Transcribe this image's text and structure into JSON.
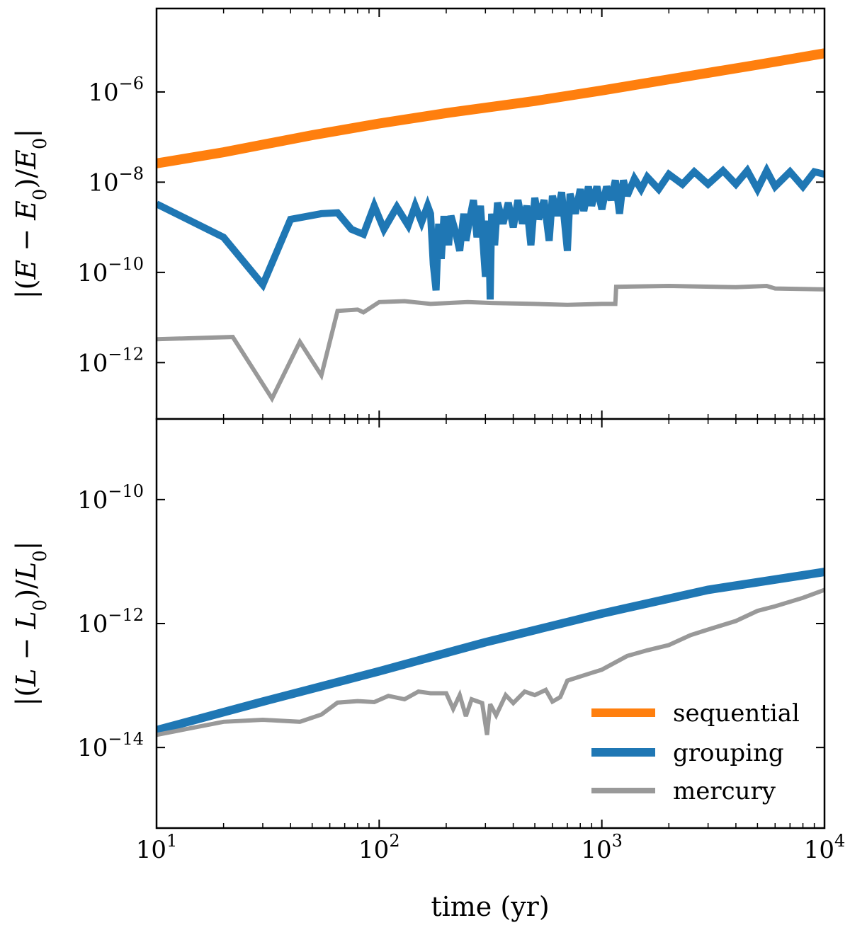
{
  "chart_data": [
    {
      "type": "line",
      "panel": "top",
      "title": "",
      "ylabel": "|(E − E0)/E0|",
      "ylabel_parts": [
        "|(",
        "E",
        " − ",
        "E",
        "0",
        ")/",
        "E",
        "0",
        "|"
      ],
      "xscale": "log",
      "yscale": "log",
      "xlim": [
        10,
        10000
      ],
      "ylim_log10": [
        -13.25,
        -4.15
      ],
      "yticks": [
        {
          "exp": -6,
          "label": "10",
          "sup": "−6"
        },
        {
          "exp": -8,
          "label": "10",
          "sup": "−8"
        },
        {
          "exp": -10,
          "label": "10",
          "sup": "−10"
        },
        {
          "exp": -12,
          "label": "10",
          "sup": "−12"
        }
      ],
      "series": [
        {
          "name": "sequential",
          "color": "#ff7f0e",
          "width": 14,
          "points": [
            [
              10,
              2.6e-08
            ],
            [
              20,
              4.6e-08
            ],
            [
              50,
              1.1e-07
            ],
            [
              100,
              2e-07
            ],
            [
              200,
              3.4e-07
            ],
            [
              500,
              6.3e-07
            ],
            [
              1000,
              1.08e-06
            ],
            [
              2000,
              1.9e-06
            ],
            [
              5000,
              4e-06
            ],
            [
              10000,
              7.2e-06
            ]
          ]
        },
        {
          "name": "grouping",
          "color": "#1f77b4",
          "width": 10,
          "points": [
            [
              10,
              3.3e-09
            ],
            [
              20,
              6e-10
            ],
            [
              30,
              5.3e-11
            ],
            [
              40,
              1.5e-09
            ],
            [
              55,
              2e-09
            ],
            [
              65,
              2.1e-09
            ],
            [
              75,
              9e-10
            ],
            [
              85,
              7e-10
            ],
            [
              95,
              3e-09
            ],
            [
              105,
              9e-10
            ],
            [
              120,
              2.8e-09
            ],
            [
              135,
              1.1e-09
            ],
            [
              145,
              3e-09
            ],
            [
              155,
              1.3e-09
            ],
            [
              165,
              3e-09
            ],
            [
              170,
              2e-09
            ],
            [
              175,
              1.5e-10
            ],
            [
              180,
              4e-11
            ],
            [
              185,
              1.2e-09
            ],
            [
              190,
              2e-10
            ],
            [
              195,
              1.5e-09
            ],
            [
              200,
              1.5e-09
            ],
            [
              205,
              4e-10
            ],
            [
              210,
              1.8e-09
            ],
            [
              220,
              8e-10
            ],
            [
              230,
              3e-10
            ],
            [
              240,
              2e-09
            ],
            [
              245,
              5e-10
            ],
            [
              255,
              1.5e-09
            ],
            [
              265,
              4e-09
            ],
            [
              275,
              6e-10
            ],
            [
              285,
              3e-09
            ],
            [
              300,
              8e-11
            ],
            [
              310,
              1.4e-09
            ],
            [
              315,
              2.5e-11
            ],
            [
              320,
              2e-09
            ],
            [
              330,
              4e-10
            ],
            [
              340,
              3.5e-09
            ],
            [
              360,
              1.2e-09
            ],
            [
              380,
              3.5e-09
            ],
            [
              400,
              1e-09
            ],
            [
              420,
              4e-09
            ],
            [
              440,
              1.2e-09
            ],
            [
              460,
              3e-09
            ],
            [
              480,
              4e-10
            ],
            [
              500,
              4.5e-09
            ],
            [
              520,
              1.5e-09
            ],
            [
              550,
              4e-09
            ],
            [
              580,
              5e-10
            ],
            [
              600,
              5e-09
            ],
            [
              630,
              1.8e-09
            ],
            [
              660,
              6e-09
            ],
            [
              700,
              3e-10
            ],
            [
              720,
              5.5e-09
            ],
            [
              760,
              2e-09
            ],
            [
              800,
              7e-09
            ],
            [
              830,
              2.3e-09
            ],
            [
              870,
              8e-09
            ],
            [
              900,
              3e-09
            ],
            [
              950,
              8e-09
            ],
            [
              1000,
              2.5e-09
            ],
            [
              1050,
              8e-09
            ],
            [
              1100,
              4e-09
            ],
            [
              1150,
              1.1e-08
            ],
            [
              1200,
              2e-09
            ],
            [
              1250,
              1.1e-08
            ],
            [
              1300,
              5e-09
            ],
            [
              1400,
              1.2e-08
            ],
            [
              1500,
              7e-09
            ],
            [
              1600,
              1.3e-08
            ],
            [
              1800,
              7e-09
            ],
            [
              2000,
              1.5e-08
            ],
            [
              2300,
              9e-09
            ],
            [
              2600,
              1.7e-08
            ],
            [
              3000,
              9e-09
            ],
            [
              3500,
              1.8e-08
            ],
            [
              4000,
              9e-09
            ],
            [
              4500,
              1.8e-08
            ],
            [
              5000,
              7e-09
            ],
            [
              5500,
              1.8e-08
            ],
            [
              6000,
              8e-09
            ],
            [
              7000,
              1.7e-08
            ],
            [
              8000,
              8e-09
            ],
            [
              9000,
              1.7e-08
            ],
            [
              10000,
              1.5e-08
            ]
          ]
        },
        {
          "name": "mercury",
          "color": "#999999",
          "width": 6,
          "points": [
            [
              10,
              3.3e-12
            ],
            [
              22,
              3.7e-12
            ],
            [
              33,
              1.6e-13
            ],
            [
              44,
              2.9e-12
            ],
            [
              55,
              5.2e-13
            ],
            [
              65,
              1.4e-11
            ],
            [
              80,
              1.5e-11
            ],
            [
              85,
              1.3e-11
            ],
            [
              100,
              2.2e-11
            ],
            [
              130,
              2.3e-11
            ],
            [
              170,
              2e-11
            ],
            [
              250,
              2.2e-11
            ],
            [
              320,
              2.1e-11
            ],
            [
              500,
              2e-11
            ],
            [
              700,
              1.9e-11
            ],
            [
              1000,
              2e-11
            ],
            [
              1150,
              2e-11
            ],
            [
              1160,
              4.8e-11
            ],
            [
              2000,
              5e-11
            ],
            [
              4000,
              4.7e-11
            ],
            [
              5500,
              5e-11
            ],
            [
              6000,
              4.4e-11
            ],
            [
              10000,
              4.2e-11
            ]
          ]
        }
      ]
    },
    {
      "type": "line",
      "panel": "bottom",
      "title": "",
      "xlabel": "time (yr)",
      "ylabel": "|(L − L0)/L0|",
      "ylabel_parts": [
        "|(",
        "L",
        " − ",
        "L",
        "0",
        ")/",
        "L",
        "0",
        "|"
      ],
      "xscale": "log",
      "yscale": "log",
      "xlim": [
        10,
        10000
      ],
      "ylim_log10": [
        -15.3,
        -8.7
      ],
      "xticks": [
        {
          "value": 10,
          "label": "10",
          "sup": "1"
        },
        {
          "value": 100,
          "label": "10",
          "sup": "2"
        },
        {
          "value": 1000,
          "label": "10",
          "sup": "3"
        },
        {
          "value": 10000,
          "label": "10",
          "sup": "4"
        }
      ],
      "yticks": [
        {
          "exp": -10,
          "label": "10",
          "sup": "−10"
        },
        {
          "exp": -12,
          "label": "10",
          "sup": "−12"
        },
        {
          "exp": -14,
          "label": "10",
          "sup": "−14"
        }
      ],
      "series": [
        {
          "name": "sequential",
          "color": "#ff7f0e",
          "width": 4,
          "points": [
            [
              10,
              1.7e-14
            ],
            [
              30,
              5.2e-14
            ],
            [
              100,
              1.6e-13
            ],
            [
              300,
              4.6e-13
            ],
            [
              1000,
              1.4e-12
            ],
            [
              3000,
              3.3e-12
            ],
            [
              10000,
              6.3e-12
            ]
          ]
        },
        {
          "name": "grouping",
          "color": "#1f77b4",
          "width": 12,
          "points": [
            [
              10,
              1.9e-14
            ],
            [
              30,
              5.5e-14
            ],
            [
              100,
              1.7e-13
            ],
            [
              300,
              5e-13
            ],
            [
              1000,
              1.45e-12
            ],
            [
              3000,
              3.5e-12
            ],
            [
              10000,
              6.8e-12
            ]
          ]
        },
        {
          "name": "mercury",
          "color": "#999999",
          "width": 6,
          "points": [
            [
              10,
              1.6e-14
            ],
            [
              20,
              2.6e-14
            ],
            [
              30,
              2.8e-14
            ],
            [
              44,
              2.6e-14
            ],
            [
              55,
              3.4e-14
            ],
            [
              65,
              5.3e-14
            ],
            [
              80,
              5.6e-14
            ],
            [
              95,
              5.4e-14
            ],
            [
              110,
              6.8e-14
            ],
            [
              130,
              6e-14
            ],
            [
              150,
              8e-14
            ],
            [
              170,
              7.5e-14
            ],
            [
              200,
              7.5e-14
            ],
            [
              215,
              4.2e-14
            ],
            [
              230,
              7e-14
            ],
            [
              245,
              3.2e-14
            ],
            [
              260,
              6e-14
            ],
            [
              290,
              5.2e-14
            ],
            [
              305,
              1.6e-14
            ],
            [
              315,
              5e-14
            ],
            [
              335,
              3.3e-14
            ],
            [
              370,
              7e-14
            ],
            [
              400,
              5.2e-14
            ],
            [
              450,
              8e-14
            ],
            [
              500,
              7e-14
            ],
            [
              560,
              8.5e-14
            ],
            [
              600,
              5.5e-14
            ],
            [
              650,
              6.5e-14
            ],
            [
              700,
              1.2e-13
            ],
            [
              800,
              1.4e-13
            ],
            [
              900,
              1.6e-13
            ],
            [
              1000,
              1.8e-13
            ],
            [
              1300,
              3e-13
            ],
            [
              1600,
              3.7e-13
            ],
            [
              2000,
              4.5e-13
            ],
            [
              2500,
              6.5e-13
            ],
            [
              3000,
              8e-13
            ],
            [
              4000,
              1.1e-12
            ],
            [
              5000,
              1.6e-12
            ],
            [
              6000,
              1.9e-12
            ],
            [
              8000,
              2.6e-12
            ],
            [
              10000,
              3.5e-12
            ]
          ]
        }
      ],
      "legend": {
        "loc": "lower-right",
        "entries": [
          {
            "label": "sequential",
            "color": "#ff7f0e"
          },
          {
            "label": "grouping",
            "color": "#1f77b4"
          },
          {
            "label": "mercury",
            "color": "#999999"
          }
        ]
      }
    }
  ]
}
